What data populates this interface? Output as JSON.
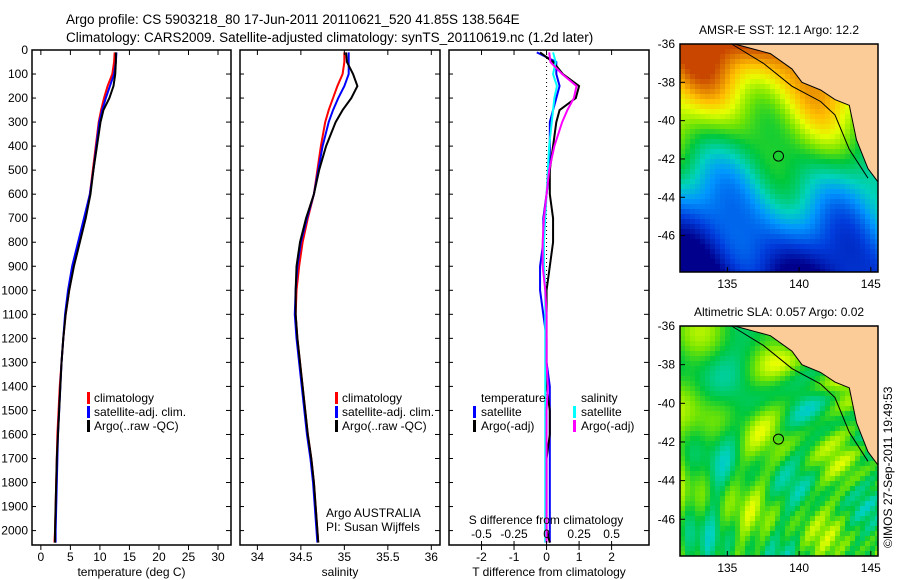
{
  "title": {
    "line1": "Argo profile: CS 5903218_80 17-Jun-2011 20110621_520 41.85S 138.564E",
    "line2": "Climatology: CARS2009. Satellite-adjusted climatology: synTS_20110619.nc (1.2d later)"
  },
  "credit": "©IMOS 27-Sep-2011 19:49:53",
  "colors": {
    "climatology": "#ff0000",
    "satellite": "#0000ff",
    "argo": "#000000",
    "sal_satellite": "#00ffff",
    "sal_argo": "#ff00ff",
    "land": "#fbcb98"
  },
  "chart_data": [
    {
      "type": "line",
      "id": "temperature",
      "xlabel": "temperature (deg C)",
      "ylim": [
        0,
        2060
      ],
      "xlim": [
        -1.5,
        32.2
      ],
      "xticks": [
        "0",
        "5",
        "10",
        "15",
        "20",
        "25",
        "30"
      ],
      "xtick_values": [
        0,
        5,
        10,
        15,
        20,
        25,
        30
      ],
      "yticks": [
        "0",
        "100",
        "200",
        "300",
        "400",
        "500",
        "600",
        "700",
        "800",
        "900",
        "1000",
        "1100",
        "1200",
        "1300",
        "1400",
        "1500",
        "1600",
        "1700",
        "1800",
        "1900",
        "2000"
      ],
      "ytick_values": [
        0,
        100,
        200,
        300,
        400,
        500,
        600,
        700,
        800,
        900,
        1000,
        1100,
        1200,
        1300,
        1400,
        1500,
        1600,
        1700,
        1800,
        1900,
        2000
      ],
      "depth": [
        10,
        50,
        100,
        150,
        200,
        250,
        300,
        400,
        500,
        600,
        700,
        800,
        900,
        1000,
        1100,
        1200,
        1300,
        1400,
        1500,
        1600,
        1700,
        1800,
        1900,
        2000,
        2050
      ],
      "series": [
        {
          "name": "climatology",
          "color": "#ff0000",
          "values": [
            12.5,
            12.4,
            12.1,
            11.3,
            10.7,
            10.2,
            9.8,
            9.3,
            8.8,
            8.3,
            7.4,
            6.4,
            5.5,
            4.8,
            4.2,
            3.8,
            3.5,
            3.2,
            3.0,
            2.8,
            2.7,
            2.6,
            2.5,
            2.4,
            2.3
          ]
        },
        {
          "name": "satellite-adj. clim.",
          "color": "#0000ff",
          "values": [
            12.8,
            12.7,
            12.4,
            11.7,
            11.0,
            10.4,
            9.9,
            9.4,
            8.9,
            8.3,
            7.3,
            6.3,
            5.3,
            4.6,
            4.1,
            3.8,
            3.5,
            3.3,
            3.1,
            2.9,
            2.8,
            2.7,
            2.6,
            2.5,
            2.5
          ]
        },
        {
          "name": "Argo(..raw -QC)",
          "color": "#000000",
          "values": [
            12.7,
            12.7,
            12.6,
            12.3,
            11.6,
            10.6,
            10.1,
            9.5,
            8.9,
            8.4,
            7.6,
            6.6,
            5.6,
            4.8,
            4.2,
            3.8,
            3.5,
            3.3,
            3.1,
            2.9,
            2.7,
            2.6,
            2.5,
            2.4,
            2.4
          ]
        }
      ],
      "legend": [
        "climatology",
        "satellite-adj. clim.",
        "Argo(..raw -QC)"
      ]
    },
    {
      "type": "line",
      "id": "salinity",
      "xlabel": "salinity",
      "ylim": [
        0,
        2060
      ],
      "xlim": [
        33.8,
        36.1
      ],
      "xticks": [
        "34",
        "34.5",
        "35",
        "35.5",
        "36"
      ],
      "xtick_values": [
        34,
        34.5,
        35,
        35.5,
        36
      ],
      "depth": [
        10,
        50,
        100,
        150,
        200,
        250,
        300,
        400,
        500,
        600,
        700,
        800,
        900,
        1000,
        1100,
        1200,
        1300,
        1400,
        1500,
        1600,
        1700,
        1800,
        1900,
        2000,
        2050
      ],
      "series": [
        {
          "name": "climatology",
          "color": "#ff0000",
          "values": [
            35.0,
            35.0,
            34.98,
            34.92,
            34.87,
            34.82,
            34.78,
            34.73,
            34.69,
            34.65,
            34.58,
            34.52,
            34.48,
            34.45,
            34.44,
            34.46,
            34.49,
            34.52,
            34.55,
            34.58,
            34.62,
            34.65,
            34.67,
            34.69,
            34.7
          ]
        },
        {
          "name": "satellite-adj. clim.",
          "color": "#0000ff",
          "values": [
            35.05,
            35.05,
            35.05,
            35.0,
            34.93,
            34.87,
            34.82,
            34.75,
            34.7,
            34.65,
            34.57,
            34.5,
            34.46,
            34.44,
            34.43,
            34.45,
            34.48,
            34.51,
            34.54,
            34.57,
            34.61,
            34.64,
            34.66,
            34.68,
            34.69
          ]
        },
        {
          "name": "Argo(..raw -QC)",
          "color": "#000000",
          "values": [
            35.02,
            35.03,
            35.1,
            35.15,
            35.08,
            34.98,
            34.9,
            34.79,
            34.71,
            34.65,
            34.56,
            34.49,
            34.45,
            34.44,
            34.44,
            34.46,
            34.49,
            34.52,
            34.55,
            34.58,
            34.62,
            34.65,
            34.67,
            34.69,
            34.7
          ]
        }
      ],
      "legend": [
        "climatology",
        "satellite-adj. clim.",
        "Argo(..raw -QC)"
      ],
      "annotation": [
        "Argo AUSTRALIA",
        "PI: Susan Wijffels"
      ]
    },
    {
      "type": "line",
      "id": "difference",
      "xlabel": "T difference from climatology",
      "xlabel2": "S difference from climatology",
      "ylim": [
        0,
        2060
      ],
      "xlim": [
        -3,
        3.15
      ],
      "xticks": [
        "-2",
        "-1",
        "0",
        "1",
        "2"
      ],
      "xtick_values": [
        -2,
        -1,
        0,
        1,
        2
      ],
      "sticks": [
        "-0.5",
        "-0.25",
        "0",
        "0.25",
        "0.5"
      ],
      "stick_values": [
        -0.5,
        -0.25,
        0,
        0.25,
        0.5
      ],
      "depth": [
        10,
        50,
        100,
        150,
        200,
        250,
        300,
        400,
        500,
        600,
        700,
        800,
        900,
        1000,
        1100,
        1200,
        1300,
        1400,
        1500,
        1600,
        1700,
        1800,
        1900,
        2000,
        2050
      ],
      "series": [
        {
          "name": "temperature satellite",
          "color": "#0000ff",
          "unit": "T",
          "values": [
            -0.3,
            0.3,
            0.3,
            0.4,
            0.3,
            0.2,
            0.1,
            0.1,
            0.1,
            0.0,
            -0.1,
            -0.1,
            -0.2,
            -0.2,
            -0.1,
            0.0,
            0.0,
            0.1,
            0.1,
            0.1,
            0.1,
            0.1,
            0.1,
            0.1,
            0.1
          ]
        },
        {
          "name": "temperature Argo(-adj)",
          "color": "#000000",
          "unit": "T",
          "values": [
            -0.2,
            0.2,
            0.5,
            1.0,
            0.9,
            0.4,
            0.3,
            0.2,
            0.1,
            0.1,
            0.2,
            0.2,
            0.1,
            0.0,
            0.0,
            0.0,
            0.0,
            0.0,
            0.1,
            0.1,
            0.0,
            0.0,
            0.0,
            0.0,
            0.1
          ]
        },
        {
          "name": "salinity satellite",
          "color": "#00ffff",
          "unit": "S",
          "values": [
            0.05,
            0.07,
            0.05,
            0.08,
            0.06,
            0.05,
            0.04,
            0.02,
            0.01,
            0.0,
            -0.01,
            -0.02,
            -0.02,
            -0.01,
            -0.01,
            -0.01,
            -0.01,
            -0.01,
            -0.01,
            -0.01,
            -0.01,
            -0.01,
            -0.01,
            -0.01,
            -0.01
          ]
        },
        {
          "name": "salinity Argo(-adj)",
          "color": "#ff00ff",
          "unit": "S",
          "values": [
            0.02,
            0.03,
            0.12,
            0.23,
            0.21,
            0.16,
            0.12,
            0.06,
            0.02,
            0.0,
            -0.02,
            -0.03,
            -0.03,
            -0.01,
            0.0,
            0.0,
            0.0,
            0.01,
            0.0,
            0.0,
            0.0,
            0.0,
            0.0,
            0.0,
            0.0
          ]
        }
      ],
      "legend": {
        "temp_header": "temperature",
        "sal_header": "salinity",
        "items": [
          "satellite",
          "Argo(-adj)",
          "satellite",
          "Argo(-adj)"
        ]
      }
    },
    {
      "type": "heatmap",
      "id": "sst_map",
      "title": "AMSR-E SST: 12.1 Argo: 12.2",
      "xlim": [
        131.7,
        145.5
      ],
      "ylim": [
        -47.9,
        -36
      ],
      "xticks": [
        "135",
        "140",
        "145"
      ],
      "xtick_values": [
        135,
        140,
        145
      ],
      "yticks": [
        "-36",
        "-38",
        "-40",
        "-42",
        "-44",
        "-46"
      ],
      "ytick_values": [
        -36,
        -38,
        -40,
        -42,
        -44,
        -46
      ],
      "marker": {
        "lon": 138.564,
        "lat": -41.85
      }
    },
    {
      "type": "heatmap",
      "id": "sla_map",
      "title": "Altimetric SLA: 0.057 Argo: 0.02",
      "xlim": [
        131.7,
        145.5
      ],
      "ylim": [
        -47.9,
        -36
      ],
      "xticks": [
        "135",
        "140",
        "145"
      ],
      "xtick_values": [
        135,
        140,
        145
      ],
      "yticks": [
        "-36",
        "-38",
        "-40",
        "-42",
        "-44",
        "-46"
      ],
      "ytick_values": [
        -36,
        -38,
        -40,
        -42,
        -44,
        -46
      ],
      "marker": {
        "lon": 138.564,
        "lat": -41.85
      }
    }
  ]
}
